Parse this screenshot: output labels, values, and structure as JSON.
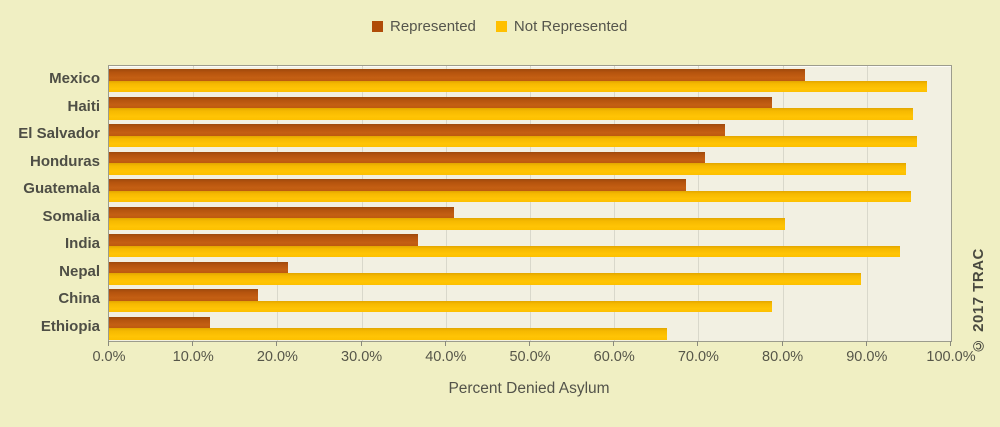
{
  "chart_data": {
    "type": "bar",
    "orientation": "horizontal",
    "title": "",
    "xlabel": "Percent Denied Asylum",
    "ylabel": "",
    "xlim": [
      0,
      100
    ],
    "grid": true,
    "legend_position": "top",
    "x_ticks": [
      "0.0%",
      "10.0%",
      "20.0%",
      "30.0%",
      "40.0%",
      "50.0%",
      "60.0%",
      "70.0%",
      "80.0%",
      "90.0%",
      "100.0%"
    ],
    "categories": [
      "Mexico",
      "Haiti",
      "El Salvador",
      "Honduras",
      "Guatemala",
      "Somalia",
      "India",
      "Nepal",
      "China",
      "Ethiopia"
    ],
    "series": [
      {
        "name": "Represented",
        "color": "#b5530d",
        "values": [
          82.7,
          78.8,
          73.2,
          70.8,
          68.5,
          41.0,
          36.7,
          21.2,
          17.7,
          12.0
        ]
      },
      {
        "name": "Not Represented",
        "color": "#ffc000",
        "values": [
          97.2,
          95.5,
          96.0,
          94.7,
          95.2,
          80.3,
          93.9,
          89.3,
          78.8,
          66.3
        ]
      }
    ]
  },
  "watermark": "© 2017 TRAC",
  "colors": {
    "page_background": "#f0efc3",
    "plot_background": "#f2f0e2",
    "gridline": "#d9d8cb",
    "represented_bar": "#bf5a11",
    "not_represented_bar": "#ffc000",
    "text": "#4e4e45"
  }
}
